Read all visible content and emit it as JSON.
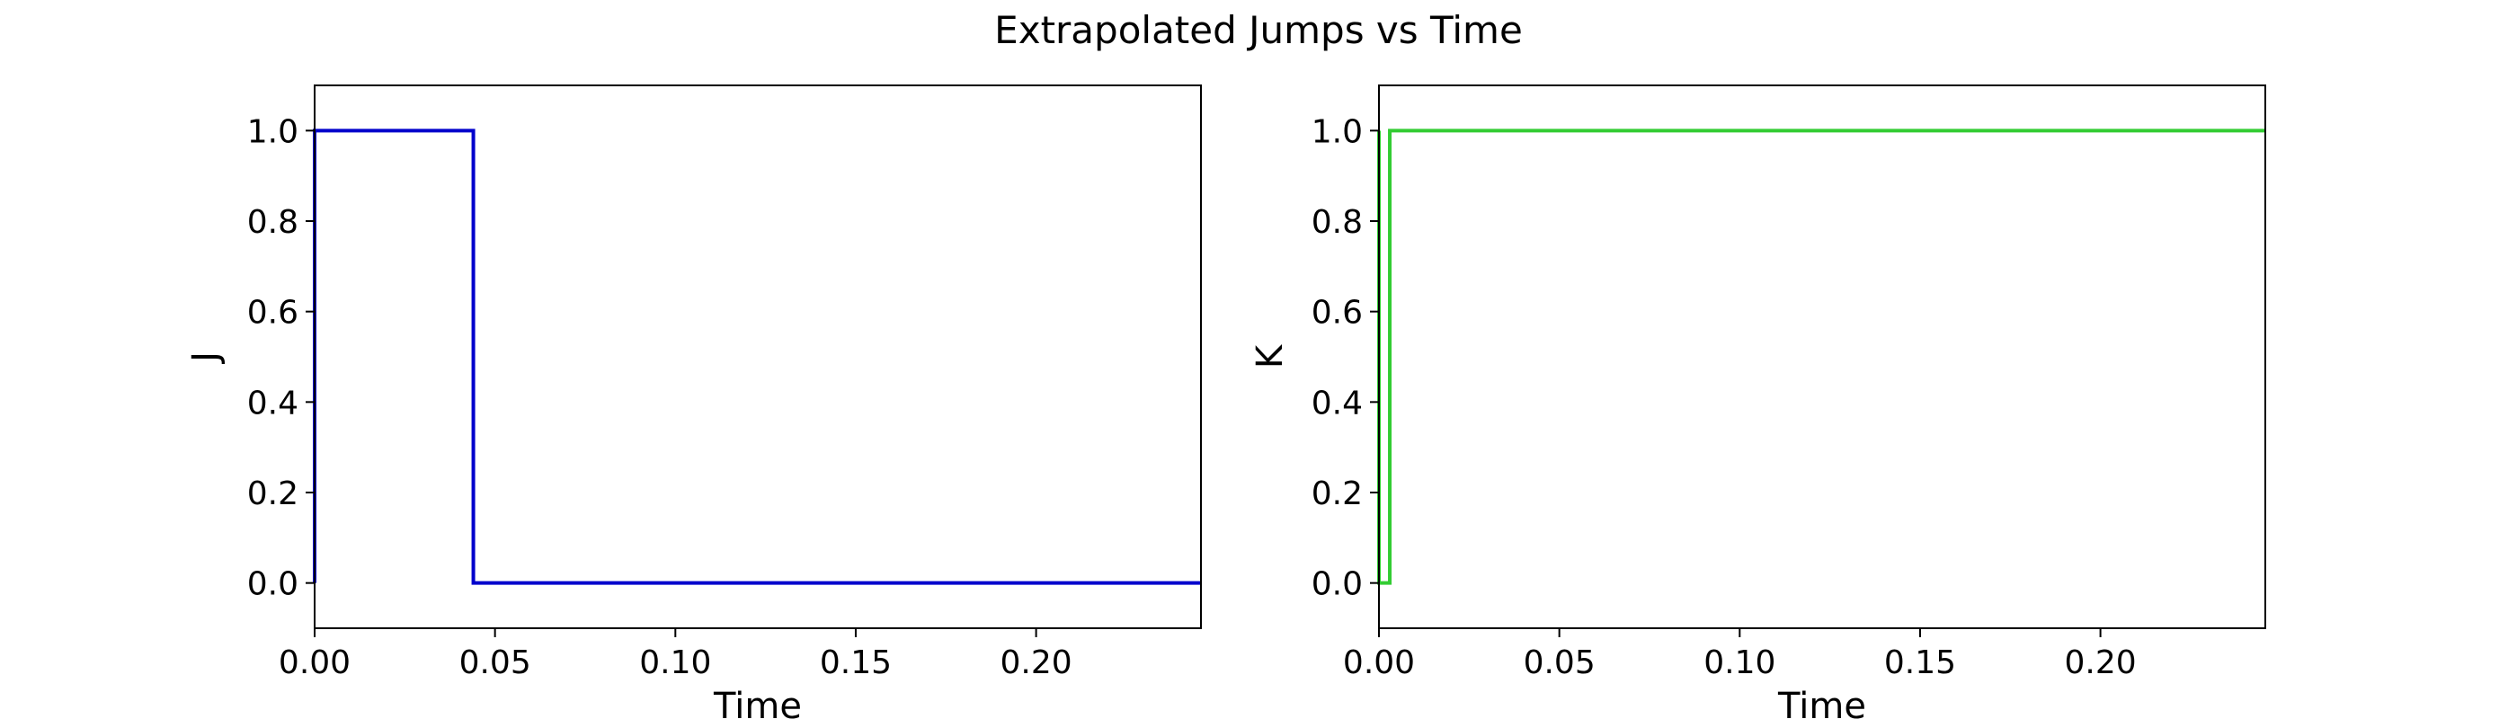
{
  "figure_title": "Extrapolated Jumps vs Time",
  "chart_data": [
    {
      "type": "line",
      "drawstyle": "steps-post",
      "title": "",
      "xlabel": "Time",
      "ylabel": "J",
      "xlim": [
        0.0,
        0.2457
      ],
      "ylim": [
        -0.1,
        1.1
      ],
      "xticks": [
        0.0,
        0.05,
        0.1,
        0.15,
        0.2
      ],
      "xtick_labels": [
        "0.00",
        "0.05",
        "0.10",
        "0.15",
        "0.20"
      ],
      "yticks": [
        0.0,
        0.2,
        0.4,
        0.6,
        0.8,
        1.0
      ],
      "ytick_labels": [
        "0.0",
        "0.2",
        "0.4",
        "0.6",
        "0.8",
        "1.0"
      ],
      "grid": false,
      "series": [
        {
          "name": "J",
          "color": "#0000cc",
          "x": [
            0.0,
            0.0,
            0.044,
            0.044,
            0.2457
          ],
          "y": [
            0.0,
            1.0,
            1.0,
            0.0,
            0.0
          ]
        }
      ]
    },
    {
      "type": "line",
      "drawstyle": "steps-post",
      "title": "",
      "xlabel": "Time",
      "ylabel": "K",
      "xlim": [
        0.0,
        0.2457
      ],
      "ylim": [
        -0.1,
        1.1
      ],
      "xticks": [
        0.0,
        0.05,
        0.1,
        0.15,
        0.2
      ],
      "xtick_labels": [
        "0.00",
        "0.05",
        "0.10",
        "0.15",
        "0.20"
      ],
      "yticks": [
        0.0,
        0.2,
        0.4,
        0.6,
        0.8,
        1.0
      ],
      "ytick_labels": [
        "0.0",
        "0.2",
        "0.4",
        "0.6",
        "0.8",
        "1.0"
      ],
      "grid": false,
      "series": [
        {
          "name": "K",
          "color": "#33cc33",
          "x": [
            0.0,
            0.0,
            0.003,
            0.003,
            0.2457
          ],
          "y": [
            1.0,
            0.0,
            0.0,
            1.0,
            1.0
          ]
        }
      ]
    }
  ]
}
